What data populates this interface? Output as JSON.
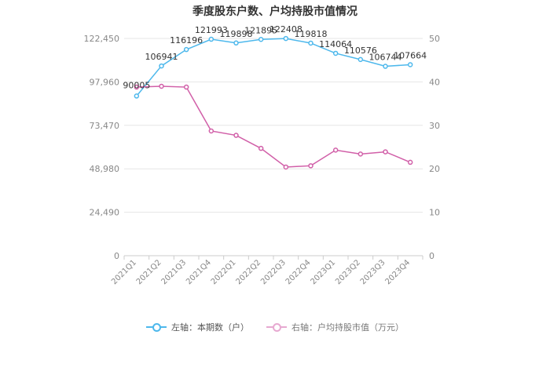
{
  "chart_data": {
    "type": "line",
    "title": "季度股东户数、户均持股市值情况",
    "categories": [
      "2021Q1",
      "2021Q2",
      "2021Q3",
      "2021Q4",
      "2022Q1",
      "2022Q2",
      "2022Q3",
      "2022Q4",
      "2023Q1",
      "2023Q2",
      "2023Q3",
      "2023Q4"
    ],
    "series": [
      {
        "name": "左轴：本期数（户）",
        "axis": "left",
        "color": "#4db8ec",
        "values": [
          90005,
          106941,
          116196,
          121993,
          119898,
          121895,
          122408,
          119818,
          114064,
          110576,
          106744,
          107664
        ],
        "labels": [
          "90005",
          "106941",
          "116196",
          "121993",
          "119898",
          "121895",
          "122408",
          "119818",
          "114064",
          "110576",
          "106744",
          "107664"
        ]
      },
      {
        "name": "右轴：户均持股市值（万元）",
        "axis": "right",
        "color": "#d15fa8",
        "values": [
          38.8,
          39.0,
          38.8,
          28.7,
          27.7,
          24.7,
          20.4,
          20.7,
          24.3,
          23.4,
          23.9,
          21.5
        ]
      }
    ],
    "left_axis": {
      "min": 0,
      "max": 122450,
      "ticks": [
        "0",
        "24,490",
        "48,980",
        "73,470",
        "97,960",
        "122,450"
      ]
    },
    "right_axis": {
      "min": 0,
      "max": 50,
      "ticks": [
        "0",
        "10",
        "20",
        "30",
        "40",
        "50"
      ]
    },
    "grid": true,
    "legend_position": "bottom"
  }
}
